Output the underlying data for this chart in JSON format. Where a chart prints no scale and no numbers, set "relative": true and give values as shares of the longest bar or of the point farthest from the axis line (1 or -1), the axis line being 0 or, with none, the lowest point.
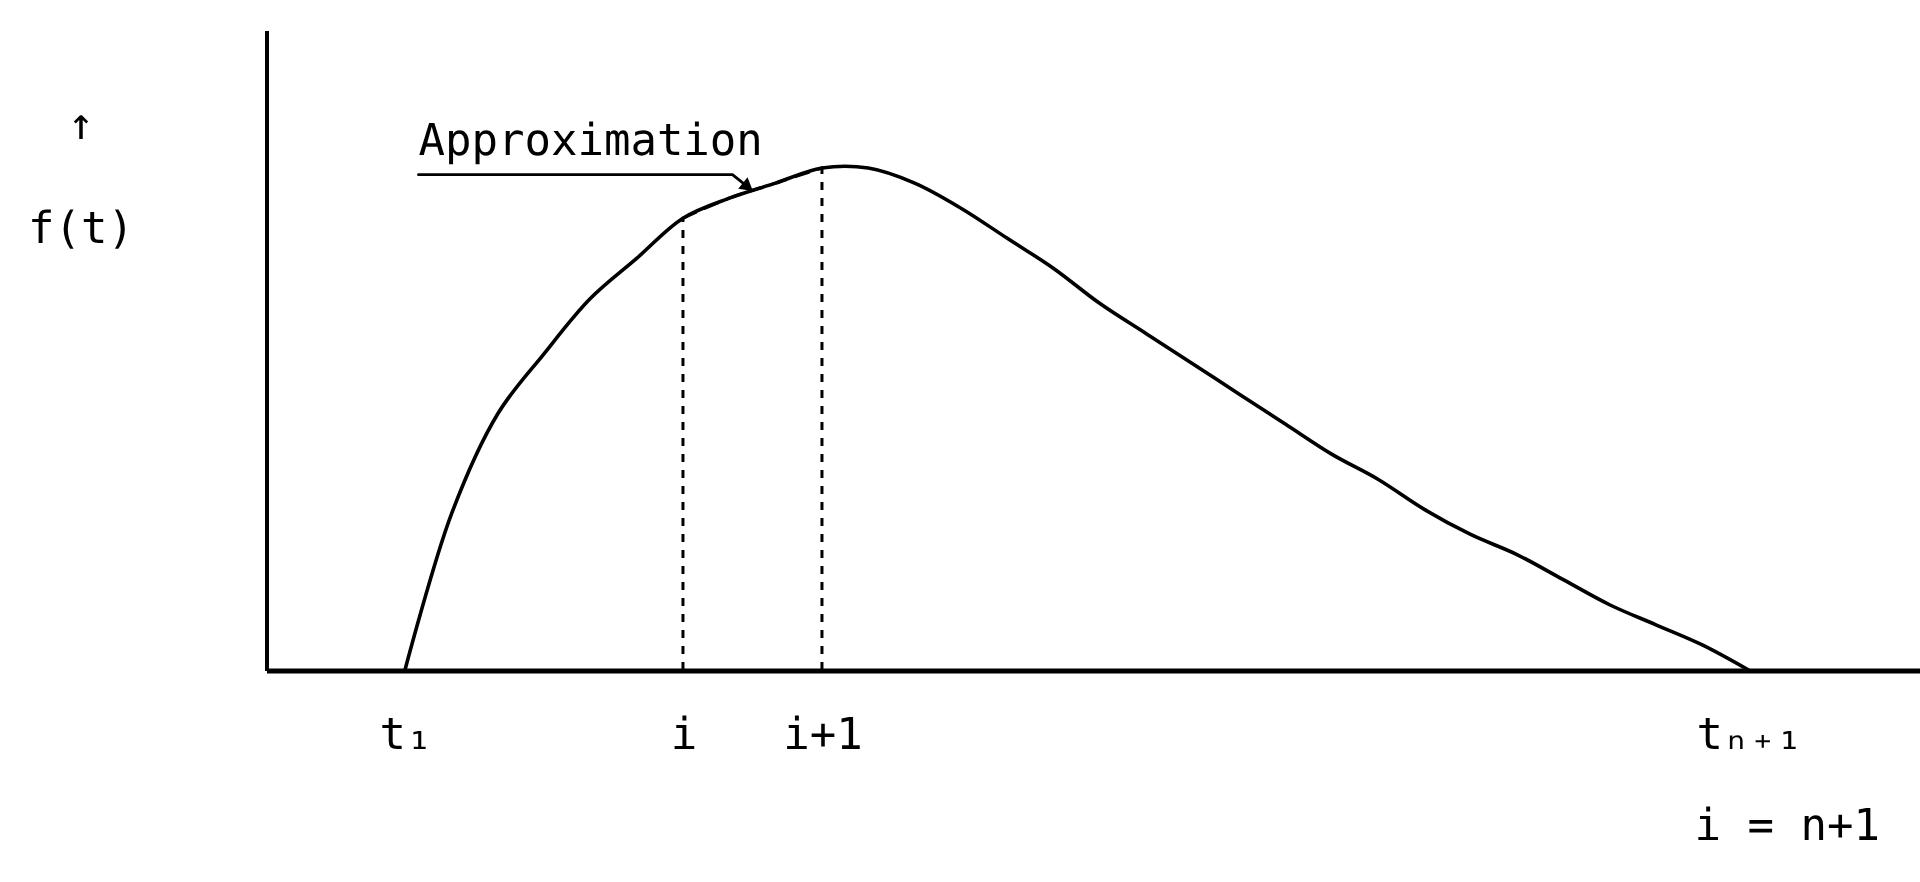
{
  "chart_data": {
    "type": "line",
    "relative": true,
    "ylabel": "↑\nf(t)",
    "tick_labels": "x",
    "categories": [
      "t₁",
      null,
      null,
      null,
      null,
      null,
      "i",
      null,
      null,
      "i+1",
      null,
      null,
      null,
      null,
      null,
      null,
      null,
      null,
      null,
      null,
      null,
      null,
      null,
      null,
      null,
      null,
      null,
      null,
      null,
      "tₙ₊₁"
    ],
    "series": [
      {
        "color": "#000000",
        "line_style": "solid",
        "values": [
          0,
          0.31,
          0.51,
          0.63,
          0.74,
          0.82,
          0.9,
          0.94,
          0.97,
          1.0,
          1.0,
          0.97,
          0.92,
          0.86,
          0.8,
          0.73,
          0.67,
          0.61,
          0.55,
          0.49,
          0.43,
          0.38,
          0.32,
          0.27,
          0.23,
          0.18,
          0.13,
          0.09,
          0.05,
          0
        ]
      },
      {
        "color": "#000000",
        "line_style": "dashed",
        "values": [
          null,
          null,
          null,
          null,
          null,
          null,
          0.9,
          0.94,
          0.97,
          1.0,
          null,
          null,
          null,
          null,
          null,
          null,
          null,
          null,
          null,
          null,
          null,
          null,
          null,
          null,
          null,
          null,
          null,
          null,
          null,
          null
        ]
      }
    ],
    "ref_lines": [
      {
        "axis": "x",
        "value": "i",
        "line_style": "dashed",
        "color": "#000000"
      },
      {
        "axis": "x",
        "value": "i+1",
        "line_style": "dashed",
        "color": "#000000"
      }
    ],
    "annotations": [
      "Approximation",
      "i = n+1"
    ]
  }
}
